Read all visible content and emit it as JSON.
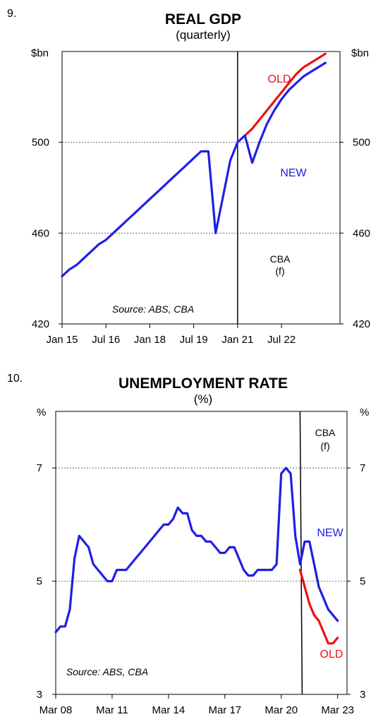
{
  "chart_data": [
    {
      "type": "line",
      "number": "9.",
      "title": "REAL GDP",
      "subtitle": "(quarterly)",
      "yunit_left": "$bn",
      "yunit_right": "$bn",
      "ylim": [
        420,
        540
      ],
      "yticks": [
        420,
        460,
        500
      ],
      "ytick_labels": [
        "420",
        "460",
        "500"
      ],
      "gridlines": [
        460,
        500
      ],
      "xlim": [
        2015.0,
        2024.5
      ],
      "xticks": [
        2015.0,
        2016.5,
        2018.0,
        2019.5,
        2021.0,
        2022.5
      ],
      "xtick_labels": [
        "Jan 15",
        "Jul 16",
        "Jan 18",
        "Jul 19",
        "Jan 21",
        "Jul 22"
      ],
      "forecast_x": 2021.0,
      "forecast_label": "CBA",
      "forecast_label_2": "(f)",
      "source": "Source: ABS, CBA",
      "colors": {
        "NEW": "#1f1fe6",
        "OLD": "#ee1111"
      },
      "series": [
        {
          "name": "NEW",
          "x": [
            2015.0,
            2015.25,
            2015.5,
            2015.75,
            2016.0,
            2016.25,
            2016.5,
            2016.75,
            2017.0,
            2017.25,
            2017.5,
            2017.75,
            2018.0,
            2018.25,
            2018.5,
            2018.75,
            2019.0,
            2019.25,
            2019.5,
            2019.75,
            2020.0,
            2020.25,
            2020.5,
            2020.75,
            2021.0,
            2021.25,
            2021.5,
            2021.75,
            2022.0,
            2022.25,
            2022.5,
            2022.75,
            2023.0,
            2023.25,
            2023.5,
            2023.75,
            2024.0
          ],
          "values": [
            441,
            444,
            446,
            449,
            452,
            455,
            457,
            460,
            463,
            466,
            469,
            472,
            475,
            478,
            481,
            484,
            487,
            490,
            493,
            496,
            496,
            460,
            476,
            492,
            500,
            503,
            491,
            500,
            508,
            514,
            519,
            523,
            526,
            529,
            531,
            533,
            535
          ]
        },
        {
          "name": "OLD",
          "x": [
            2021.25,
            2021.5,
            2021.75,
            2022.0,
            2022.25,
            2022.5,
            2022.75,
            2023.0,
            2023.25,
            2023.5,
            2023.75,
            2024.0
          ],
          "values": [
            503,
            506,
            510,
            514,
            518,
            522,
            526,
            530,
            533,
            535,
            537,
            539
          ]
        }
      ],
      "annotations": [
        {
          "text": "OLD",
          "color": "#ee1111"
        },
        {
          "text": "NEW",
          "color": "#1f1fe6"
        }
      ]
    },
    {
      "type": "line",
      "number": "10.",
      "title": "UNEMPLOYMENT RATE",
      "subtitle": "(%)",
      "yunit_left": "%",
      "yunit_right": "%",
      "ylim": [
        3,
        8
      ],
      "yticks": [
        3,
        5,
        7
      ],
      "ytick_labels": [
        "3",
        "5",
        "7"
      ],
      "gridlines": [
        5,
        7
      ],
      "xlim": [
        2008.0,
        2023.5
      ],
      "xticks": [
        2008.0,
        2011.0,
        2014.0,
        2017.0,
        2020.0,
        2023.0
      ],
      "xtick_labels": [
        "Mar 08",
        "Mar 11",
        "Mar 14",
        "Mar 17",
        "Mar 20",
        "Mar 23"
      ],
      "forecast_x": 2021.0,
      "forecast_label": "CBA",
      "forecast_label_2": "(f)",
      "source": "Source: ABS, CBA",
      "colors": {
        "NEW": "#1f1fe6",
        "OLD": "#ee1111"
      },
      "series": [
        {
          "name": "NEW",
          "x": [
            2008.0,
            2008.25,
            2008.5,
            2008.75,
            2009.0,
            2009.25,
            2009.5,
            2009.75,
            2010.0,
            2010.25,
            2010.5,
            2010.75,
            2011.0,
            2011.25,
            2011.5,
            2011.75,
            2012.0,
            2012.25,
            2012.5,
            2012.75,
            2013.0,
            2013.25,
            2013.5,
            2013.75,
            2014.0,
            2014.25,
            2014.5,
            2014.75,
            2015.0,
            2015.25,
            2015.5,
            2015.75,
            2016.0,
            2016.25,
            2016.5,
            2016.75,
            2017.0,
            2017.25,
            2017.5,
            2017.75,
            2018.0,
            2018.25,
            2018.5,
            2018.75,
            2019.0,
            2019.25,
            2019.5,
            2019.75,
            2020.0,
            2020.25,
            2020.5,
            2020.75,
            2021.0,
            2021.25,
            2021.5,
            2021.75,
            2022.0,
            2022.25,
            2022.5,
            2022.75,
            2023.0
          ],
          "values": [
            4.1,
            4.2,
            4.2,
            4.5,
            5.4,
            5.8,
            5.7,
            5.6,
            5.3,
            5.2,
            5.1,
            5.0,
            5.0,
            5.2,
            5.2,
            5.2,
            5.3,
            5.4,
            5.5,
            5.6,
            5.7,
            5.8,
            5.9,
            6.0,
            6.0,
            6.1,
            6.3,
            6.2,
            6.2,
            5.9,
            5.8,
            5.8,
            5.7,
            5.7,
            5.6,
            5.5,
            5.5,
            5.6,
            5.6,
            5.4,
            5.2,
            5.1,
            5.1,
            5.2,
            5.2,
            5.2,
            5.2,
            5.3,
            6.9,
            7.0,
            6.9,
            5.8,
            5.3,
            5.7,
            5.7,
            5.3,
            4.9,
            4.7,
            4.5,
            4.4,
            4.3
          ]
        },
        {
          "name": "OLD",
          "x": [
            2021.0,
            2021.25,
            2021.5,
            2021.75,
            2022.0,
            2022.25,
            2022.5,
            2022.75,
            2023.0
          ],
          "values": [
            5.2,
            4.9,
            4.6,
            4.4,
            4.3,
            4.1,
            3.9,
            3.9,
            4.0
          ]
        }
      ],
      "annotations": [
        {
          "text": "NEW",
          "color": "#1f1fe6"
        },
        {
          "text": "OLD",
          "color": "#ee1111"
        }
      ]
    }
  ]
}
